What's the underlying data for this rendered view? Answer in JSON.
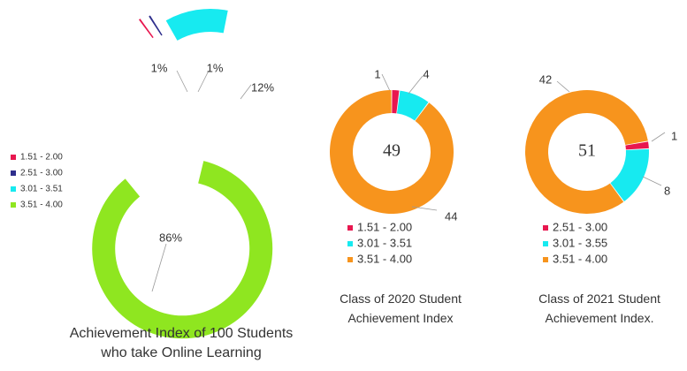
{
  "chart_data": [
    {
      "type": "pie",
      "style": "exploded-donut",
      "title": "Achievement Index of 100 Students who take Online Learning",
      "title_lines": [
        "Achievement Index of 100 Students",
        "who take Online Learning"
      ],
      "legend_position": "left",
      "slices": [
        {
          "name": "1.51 - 2.00",
          "value": 1,
          "label": "1%",
          "color": "#e8174f"
        },
        {
          "name": "2.51 - 3.00",
          "value": 1,
          "label": "1%",
          "color": "#2e2e8c"
        },
        {
          "name": "3.01 - 3.51",
          "value": 12,
          "label": "12%",
          "color": "#17eaf0"
        },
        {
          "name": "3.51 - 4.00",
          "value": 86,
          "label": "86%",
          "color": "#8fe620"
        }
      ]
    },
    {
      "type": "pie",
      "style": "donut",
      "center_label": "49",
      "title": "Class of 2020 Student Achievement Index",
      "title_lines": [
        "Class of 2020 Student",
        "Achievement Index"
      ],
      "legend_position": "bottom",
      "slices": [
        {
          "name": "1.51 - 2.00",
          "value": 1,
          "label": "1",
          "color": "#e8174f"
        },
        {
          "name": "3.01 - 3.51",
          "value": 4,
          "label": "4",
          "color": "#17eaf0"
        },
        {
          "name": "3.51 - 4.00",
          "value": 44,
          "label": "44",
          "color": "#f7941d"
        }
      ]
    },
    {
      "type": "pie",
      "style": "donut",
      "center_label": "51",
      "title": "Class of 2021 Student Achievement Index.",
      "title_lines": [
        "Class of 2021 Student",
        "Achievement Index."
      ],
      "legend_position": "bottom",
      "slices": [
        {
          "name": "2.51 - 3.00",
          "value": 1,
          "label": "1",
          "color": "#e8174f"
        },
        {
          "name": "3.01 - 3.55",
          "value": 8,
          "label": "8",
          "color": "#17eaf0"
        },
        {
          "name": "3.51 - 4.00",
          "value": 42,
          "label": "42",
          "color": "#f7941d"
        }
      ]
    }
  ]
}
